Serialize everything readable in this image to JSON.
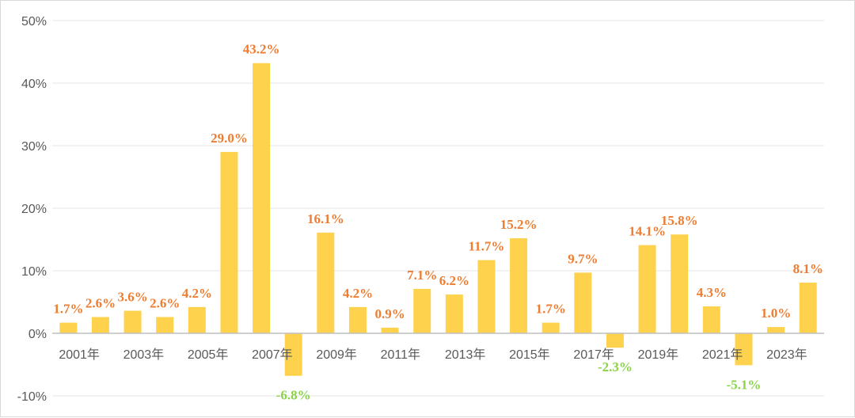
{
  "chart_data": {
    "type": "bar",
    "categories": [
      "2001年",
      "2002年",
      "2003年",
      "2004年",
      "2005年",
      "2006年",
      "2007年",
      "2008年",
      "2009年",
      "2010年",
      "2011年",
      "2012年",
      "2013年",
      "2014年",
      "2015年",
      "2016年",
      "2017年",
      "2018年",
      "2019年",
      "2020年",
      "2021年",
      "2022年",
      "2023年",
      "2024年"
    ],
    "x_tick_labels": [
      "2001年",
      "2003年",
      "2005年",
      "2007年",
      "2009年",
      "2011年",
      "2013年",
      "2015年",
      "2017年",
      "2019年",
      "2021年",
      "2023年"
    ],
    "values": [
      1.7,
      2.6,
      3.6,
      2.6,
      4.2,
      29.0,
      43.2,
      -6.8,
      16.1,
      4.2,
      0.9,
      7.1,
      6.2,
      11.7,
      15.2,
      1.7,
      9.7,
      -2.3,
      14.1,
      15.8,
      4.3,
      -5.1,
      1.0,
      8.1
    ],
    "data_labels": [
      "1.7%",
      "2.6%",
      "3.6%",
      "2.6%",
      "4.2%",
      "29.0%",
      "43.2%",
      "-6.8%",
      "16.1%",
      "4.2%",
      "0.9%",
      "7.1%",
      "6.2%",
      "11.7%",
      "15.2%",
      "1.7%",
      "9.7%",
      "-2.3%",
      "14.1%",
      "15.8%",
      "4.3%",
      "-5.1%",
      "1.0%",
      "8.1%"
    ],
    "y_tick_labels": [
      "-10%",
      "0%",
      "10%",
      "20%",
      "30%",
      "40%",
      "50%"
    ],
    "ylim": [
      -10,
      50
    ],
    "y_ticks": [
      -10,
      0,
      10,
      20,
      30,
      40,
      50
    ],
    "grid": true,
    "legend": "none",
    "title": "",
    "xlabel": "",
    "ylabel": "",
    "colors": {
      "bar": "#FFD24D",
      "positive_label": "#EE7D31",
      "negative_label": "#8CD34B",
      "grid": "#e6e6e6",
      "axis": "#bfbfbf"
    }
  }
}
